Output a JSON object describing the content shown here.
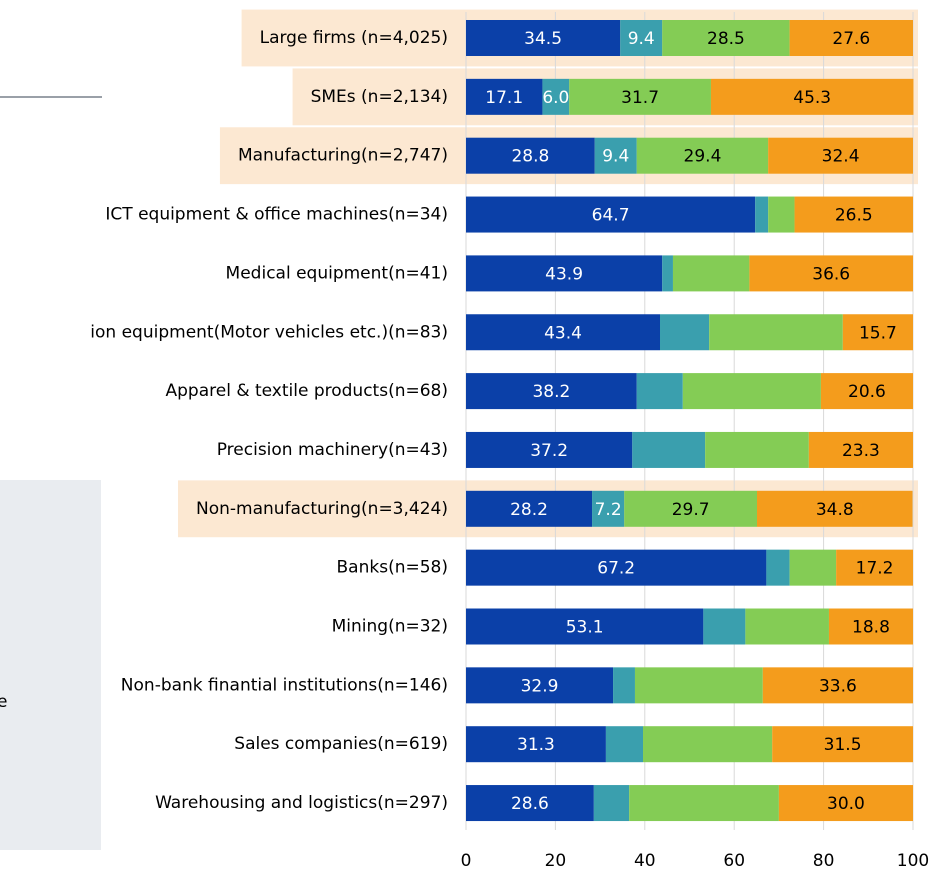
{
  "chart_data": {
    "type": "stacked_bar_horizontal",
    "categories": [
      "Large firms (n=4,025)",
      "SMEs (n=2,134)",
      "Manufacturing(n=2,747)",
      "ICT equipment & office machines(n=34)",
      "Medical equipment(n=41)",
      "ion equipment(Motor vehicles etc.)(n=83)",
      "Apparel & textile products(n=68)",
      "Precision machinery(n=43)",
      "Non-manufacturing(n=3,424)",
      "Banks(n=58)",
      "Mining(n=32)",
      "Non-bank finantial institutions(n=146)",
      "Sales companies(n=619)",
      "Warehousing and logistics(n=297)"
    ],
    "series": [
      {
        "color": "#0b40a8",
        "values": [
          34.5,
          17.1,
          28.8,
          64.7,
          43.9,
          43.4,
          38.2,
          37.2,
          28.2,
          67.2,
          53.1,
          32.9,
          31.3,
          28.6
        ],
        "value_labels": [
          "34.5",
          "17.1",
          "28.8",
          "64.7",
          "43.9",
          "43.4",
          "38.2",
          "37.2",
          "28.2",
          "67.2",
          "53.1",
          "32.9",
          "31.3",
          "28.6"
        ]
      },
      {
        "color": "#3a9fae",
        "values": [
          9.4,
          6.0,
          9.4,
          2.9,
          2.4,
          11.0,
          10.3,
          16.3,
          7.2,
          5.2,
          9.4,
          4.9,
          8.3,
          7.9
        ],
        "value_labels": [
          "9.4",
          "6.0",
          "9.4",
          null,
          null,
          null,
          null,
          null,
          "7.2",
          null,
          null,
          null,
          null,
          null
        ]
      },
      {
        "color": "#84cc55",
        "values": [
          28.5,
          31.7,
          29.4,
          5.9,
          17.1,
          29.9,
          30.9,
          23.2,
          29.7,
          10.4,
          18.7,
          28.6,
          28.9,
          33.5
        ],
        "value_labels": [
          "28.5",
          "31.7",
          "29.4",
          null,
          null,
          null,
          null,
          null,
          "29.7",
          null,
          null,
          null,
          null,
          null
        ]
      },
      {
        "color": "#f49c1c",
        "values": [
          27.6,
          45.3,
          32.4,
          26.5,
          36.6,
          15.7,
          20.6,
          23.3,
          34.8,
          17.2,
          18.8,
          33.6,
          31.5,
          30.0
        ],
        "value_labels": [
          "27.6",
          "45.3",
          "32.4",
          "26.5",
          "36.6",
          "15.7",
          "20.6",
          "23.3",
          "34.8",
          "17.2",
          "18.8",
          "33.6",
          "31.5",
          "30.0"
        ]
      }
    ],
    "xlim": [
      0,
      100
    ],
    "xticks": [
      0,
      20,
      40,
      60,
      80,
      100
    ],
    "grid": true,
    "highlighted_categories": [
      0,
      1,
      2,
      8
    ],
    "highlight_color": "#fce8d2",
    "sidebar_text": "e"
  }
}
